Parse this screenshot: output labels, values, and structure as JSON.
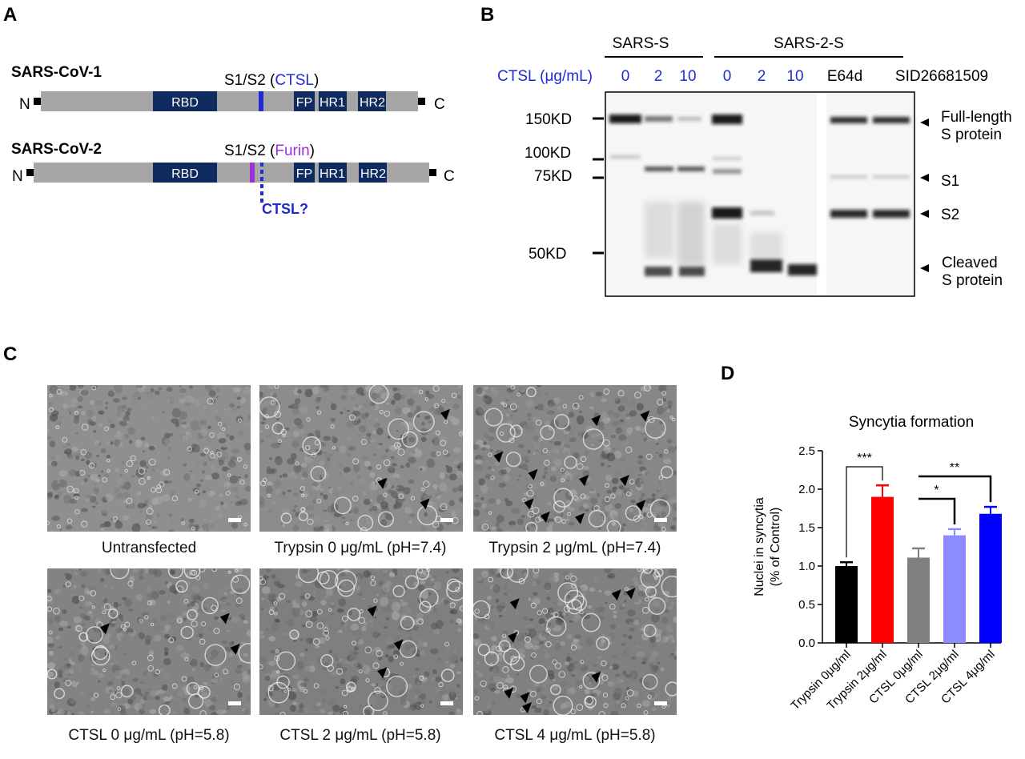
{
  "panels": {
    "A": {
      "label": "A",
      "constructs": [
        {
          "name": "SARS-CoV-1",
          "site_label_prefix": "S1/S2 (",
          "site_label_enzyme": "CTSL",
          "site_label_suffix": ")",
          "domains": [
            "RBD",
            "FP",
            "HR1",
            "HR2"
          ]
        },
        {
          "name": "SARS-CoV-2",
          "site_label_prefix": "S1/S2 (",
          "site_label_enzyme": "Furin",
          "site_label_suffix": ")",
          "domains": [
            "RBD",
            "FP",
            "HR1",
            "HR2"
          ],
          "extra_site": "CTSL?"
        }
      ],
      "n_terminus": "N",
      "c_terminus": "C",
      "colors": {
        "domain": "#0f2a5e",
        "backbone": "#a6a6a6",
        "ctsl": "#1f2bd6",
        "furin": "#9b30d9"
      }
    },
    "B": {
      "label": "B",
      "groups": [
        "SARS-S",
        "SARS-2-S"
      ],
      "conc_label": "CTSL (μg/mL)",
      "lanes": [
        "0",
        "2",
        "10",
        "0",
        "2",
        "10",
        "E64d",
        "SID26681509"
      ],
      "markers": [
        "150KD",
        "100KD",
        "75KD",
        "50KD"
      ],
      "bands": [
        "Full-length\nS protein",
        "S1",
        "S2",
        "Cleaved\nS protein"
      ],
      "band_lines": [
        [
          "Full-length",
          "S protein"
        ],
        [
          "S1"
        ],
        [
          "S2"
        ],
        [
          "Cleaved",
          "S protein"
        ]
      ]
    },
    "C": {
      "label": "C",
      "captions": [
        "Untransfected",
        "Trypsin 0 μg/mL (pH=7.4)",
        "Trypsin 2 μg/mL (pH=7.4)",
        "CTSL 0 μg/mL (pH=5.8)",
        "CTSL 2 μg/mL (pH=5.8)",
        "CTSL 4 μg/mL (pH=5.8)"
      ]
    },
    "D": {
      "label": "D"
    }
  },
  "chart_data": {
    "type": "bar",
    "title": "Syncytia formation",
    "ylabel_line1": "Nuclei in syncytia",
    "ylabel_line2": "(% of Control)",
    "categories": [
      "Trypsin 0μg/ml",
      "Trypsin 2μg/ml",
      "CTSL 0μg/ml",
      "CTSL 2μg/ml",
      "CTSL 4μg/ml"
    ],
    "values": [
      1.0,
      1.9,
      1.11,
      1.4,
      1.68
    ],
    "errors": [
      0.05,
      0.15,
      0.12,
      0.08,
      0.09
    ],
    "colors": [
      "#000000",
      "#ff0000",
      "#808080",
      "#8c8cff",
      "#0000ff"
    ],
    "ylim": [
      0,
      2.5
    ],
    "yticks": [
      "0.0",
      "0.5",
      "1.0",
      "1.5",
      "2.0",
      "2.5"
    ],
    "grid": false,
    "significance": [
      {
        "from": 0,
        "to": 1,
        "label": "***"
      },
      {
        "from": 2,
        "to": 3,
        "label": "*"
      },
      {
        "from": 2,
        "to": 4,
        "label": "**"
      }
    ]
  }
}
